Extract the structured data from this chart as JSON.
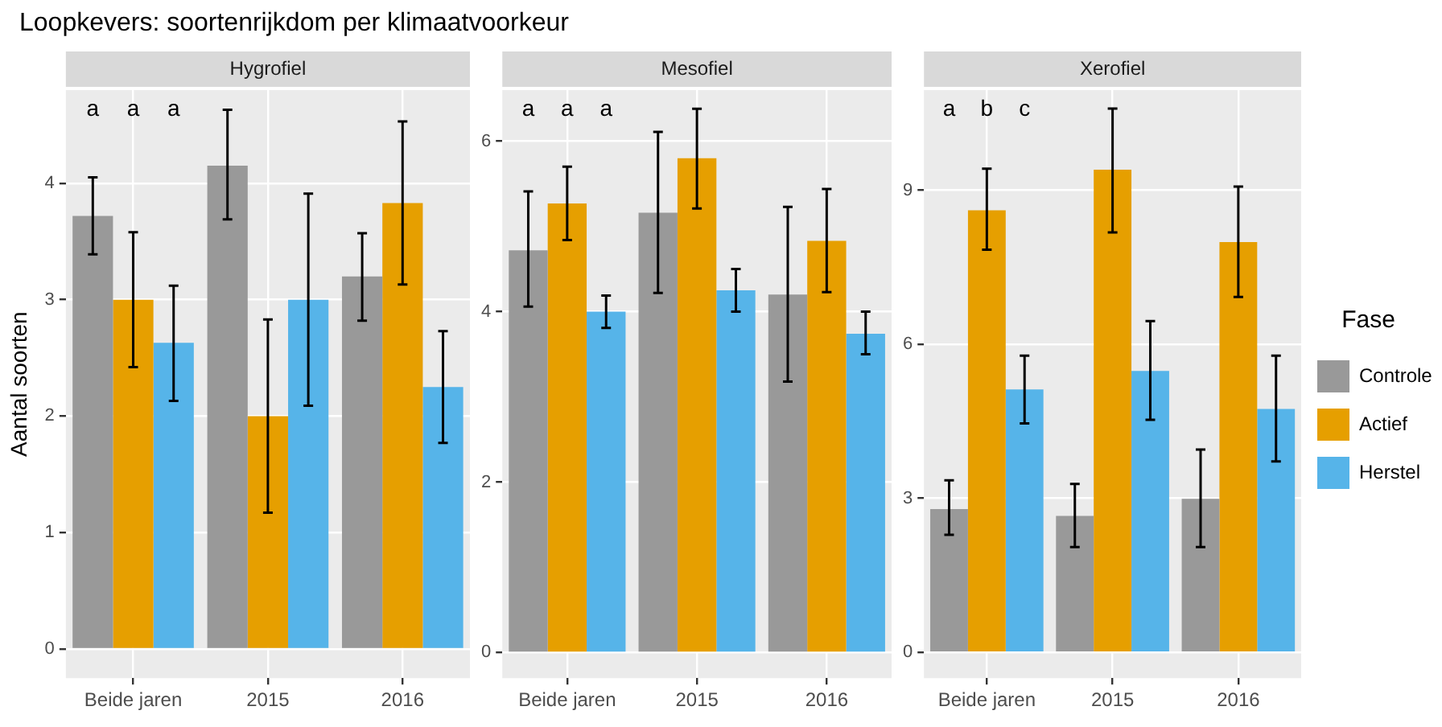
{
  "chart_data": [
    {
      "type": "bar",
      "title": "Loopkevers: soortenrijkdom per klimaatvoorkeur",
      "subtitle": "Hygrofiel",
      "ylabel": "Aantal soorten",
      "categories": [
        "Beide jaren",
        "2015",
        "2016"
      ],
      "ylim": [
        -0.25,
        4.8
      ],
      "yticks": [
        0,
        1,
        2,
        3,
        4
      ],
      "grid": true,
      "series": [
        {
          "color": "#999999",
          "values": [
            3.72,
            4.15,
            3.2
          ],
          "errors": [
            [
              3.39,
              4.05
            ],
            [
              3.69,
              4.63
            ],
            [
              2.82,
              3.57
            ]
          ]
        },
        {
          "color": "#e69f00",
          "values": [
            3.0,
            2.0,
            3.83
          ],
          "errors": [
            [
              2.42,
              3.58
            ],
            [
              1.17,
              2.83
            ],
            [
              3.13,
              4.53
            ]
          ]
        },
        {
          "color": "#56b4e9",
          "values": [
            2.63,
            3.0,
            2.25
          ],
          "errors": [
            [
              2.13,
              3.12
            ],
            [
              2.09,
              3.91
            ],
            [
              1.77,
              2.73
            ]
          ]
        }
      ],
      "annotations": [
        "a",
        "a",
        "a"
      ]
    },
    {
      "type": "bar",
      "subtitle": "Mesofiel",
      "categories": [
        "Beide jaren",
        "2015",
        "2016"
      ],
      "ylim": [
        -0.3,
        6.6
      ],
      "yticks": [
        0,
        2,
        4,
        6
      ],
      "grid": true,
      "series": [
        {
          "color": "#999999",
          "values": [
            4.72,
            5.16,
            4.2
          ],
          "errors": [
            [
              4.06,
              5.41
            ],
            [
              4.22,
              6.11
            ],
            [
              3.18,
              5.23
            ]
          ]
        },
        {
          "color": "#e69f00",
          "values": [
            5.27,
            5.8,
            4.83
          ],
          "errors": [
            [
              4.84,
              5.7
            ],
            [
              5.21,
              6.38
            ],
            [
              4.23,
              5.44
            ]
          ]
        },
        {
          "color": "#56b4e9",
          "values": [
            4.0,
            4.25,
            3.74
          ],
          "errors": [
            [
              3.81,
              4.19
            ],
            [
              4.0,
              4.5
            ],
            [
              3.5,
              4.0
            ]
          ]
        }
      ],
      "annotations": [
        "a",
        "a",
        "a"
      ]
    },
    {
      "type": "bar",
      "subtitle": "Xerofiel",
      "categories": [
        "Beide jaren",
        "2015",
        "2016"
      ],
      "ylim": [
        -0.5,
        10.95
      ],
      "yticks": [
        0,
        3,
        6,
        9
      ],
      "grid": true,
      "legend": "right",
      "legend_title": "Fase",
      "series": [
        {
          "name": "Controle",
          "color": "#999999",
          "values": [
            2.79,
            2.66,
            2.99
          ],
          "errors": [
            [
              2.29,
              3.35
            ],
            [
              2.05,
              3.28
            ],
            [
              2.05,
              3.95
            ]
          ]
        },
        {
          "name": "Actief",
          "color": "#e69f00",
          "values": [
            8.61,
            9.4,
            7.99
          ],
          "errors": [
            [
              7.84,
              9.42
            ],
            [
              8.18,
              10.59
            ],
            [
              6.92,
              9.07
            ]
          ]
        },
        {
          "name": "Herstel",
          "color": "#56b4e9",
          "values": [
            5.12,
            5.48,
            4.74
          ],
          "errors": [
            [
              4.46,
              5.78
            ],
            [
              4.53,
              6.45
            ],
            [
              3.72,
              5.78
            ]
          ]
        }
      ],
      "annotations": [
        "a",
        "b",
        "c"
      ]
    }
  ]
}
